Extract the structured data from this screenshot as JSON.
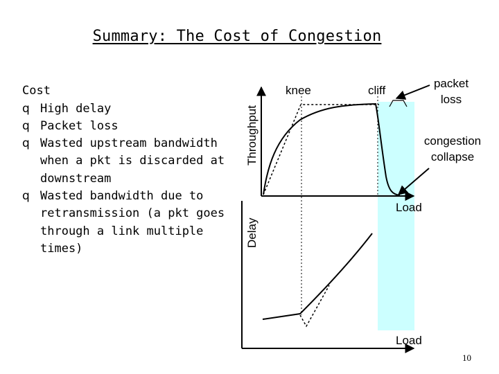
{
  "slide": {
    "title": "Summary: The Cost of Congestion",
    "page_number": "10"
  },
  "bullets": {
    "heading": "Cost",
    "items": [
      "High delay",
      "Packet loss",
      "Wasted upstream bandwidth when a pkt is discarded at downstream",
      "Wasted bandwidth due to retransmission (a pkt goes through a link multiple times)"
    ],
    "marker": "q"
  },
  "diagram": {
    "throughput_label": "Throughput",
    "delay_label": "Delay",
    "load_label_top": "Load",
    "load_label_bottom": "Load",
    "knee_label": "knee",
    "cliff_label": "cliff",
    "packet_loss_label_line1": "packet",
    "packet_loss_label_line2": "loss",
    "congestion_collapse_line1": "congestion",
    "congestion_collapse_line2": "collapse",
    "highlight_color": "#ccffff"
  }
}
